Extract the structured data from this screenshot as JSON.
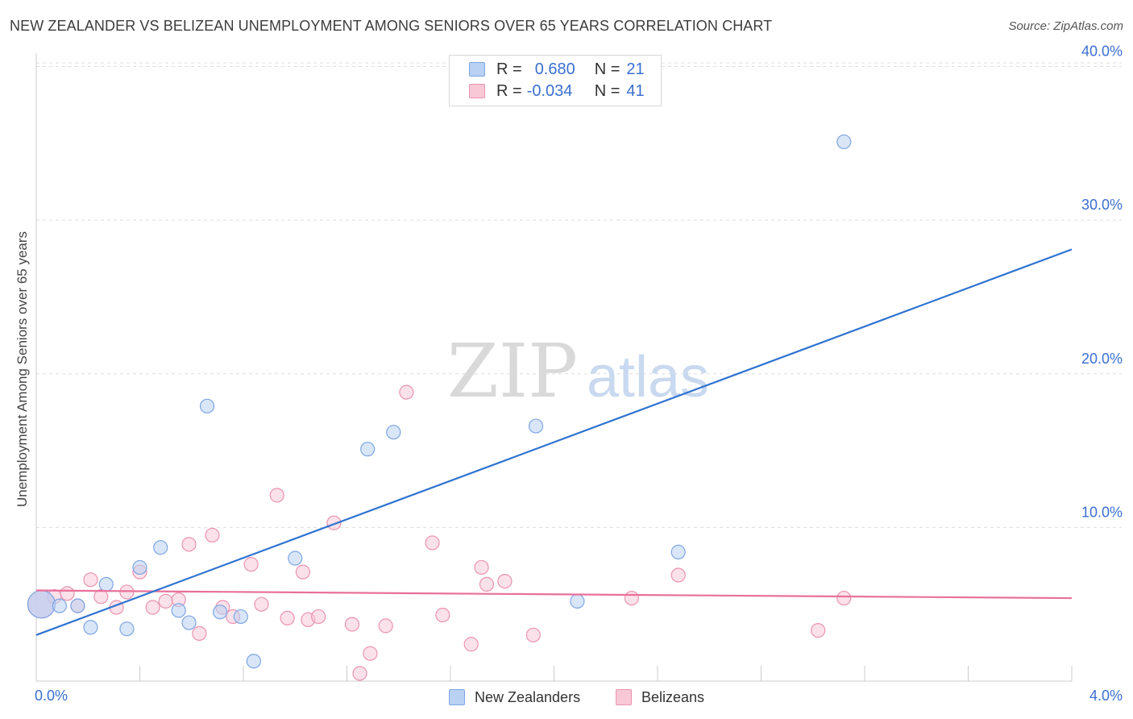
{
  "header": {
    "title": "NEW ZEALANDER VS BELIZEAN UNEMPLOYMENT AMONG SENIORS OVER 65 YEARS CORRELATION CHART",
    "source": "Source: ZipAtlas.com"
  },
  "watermark": {
    "zip": "ZIP",
    "atlas": "atlas"
  },
  "legend_top": {
    "rows": [
      {
        "r_label": "R =",
        "r_value": "0.680",
        "n_label": "N =",
        "n_value": "21"
      },
      {
        "r_label": "R =",
        "r_value": "-0.034",
        "n_label": "N =",
        "n_value": "41"
      }
    ]
  },
  "legend_bottom": {
    "series1": "New Zealanders",
    "series2": "Belizeans"
  },
  "colors": {
    "blue_fill": "#b9d1f3",
    "blue_stroke": "#7ea6e3",
    "blue_line": "#2f73d0",
    "pink_fill": "#f8c8d7",
    "pink_stroke": "#eb93b1",
    "pink_line": "#e8709b",
    "grid": "#dddddd",
    "tick_label": "#3a6fd0"
  },
  "chart_data": {
    "type": "scatter",
    "title": "NEW ZEALANDER VS BELIZEAN UNEMPLOYMENT AMONG SENIORS OVER 65 YEARS CORRELATION CHART",
    "xlabel": "",
    "ylabel": "Unemployment Among Seniors over 65 years",
    "xlim": [
      0,
      4.0
    ],
    "ylim": [
      0,
      40.5
    ],
    "x_tick_labels": [
      "0.0%",
      "4.0%"
    ],
    "y_ticks": [
      10,
      20,
      30,
      40
    ],
    "y_tick_labels": [
      "10.0%",
      "20.0%",
      "30.0%",
      "40.0%"
    ],
    "series": [
      {
        "name": "New Zealanders",
        "r": 0.68,
        "n": 21,
        "trend": {
          "x": [
            0.0,
            4.0
          ],
          "y": [
            3.0,
            28.1
          ]
        },
        "points": [
          {
            "x": 0.02,
            "y": 5.0,
            "big": true
          },
          {
            "x": 0.09,
            "y": 4.9
          },
          {
            "x": 0.16,
            "y": 4.9
          },
          {
            "x": 0.21,
            "y": 3.5
          },
          {
            "x": 0.27,
            "y": 6.3
          },
          {
            "x": 0.35,
            "y": 3.4
          },
          {
            "x": 0.4,
            "y": 7.4
          },
          {
            "x": 0.48,
            "y": 8.7
          },
          {
            "x": 0.55,
            "y": 4.6
          },
          {
            "x": 0.59,
            "y": 3.8
          },
          {
            "x": 0.66,
            "y": 17.9
          },
          {
            "x": 0.71,
            "y": 4.5
          },
          {
            "x": 0.79,
            "y": 4.2
          },
          {
            "x": 0.84,
            "y": 1.3
          },
          {
            "x": 1.0,
            "y": 8.0
          },
          {
            "x": 1.28,
            "y": 15.1
          },
          {
            "x": 1.38,
            "y": 16.2
          },
          {
            "x": 1.93,
            "y": 16.6
          },
          {
            "x": 2.09,
            "y": 5.2
          },
          {
            "x": 2.48,
            "y": 8.4
          },
          {
            "x": 3.12,
            "y": 35.1
          }
        ]
      },
      {
        "name": "Belizeans",
        "r": -0.034,
        "n": 41,
        "trend": {
          "x": [
            0.0,
            4.0
          ],
          "y": [
            5.9,
            5.4
          ]
        },
        "points": [
          {
            "x": 0.02,
            "y": 5.0,
            "big": true
          },
          {
            "x": 0.07,
            "y": 5.5
          },
          {
            "x": 0.12,
            "y": 5.7
          },
          {
            "x": 0.16,
            "y": 4.9
          },
          {
            "x": 0.21,
            "y": 6.6
          },
          {
            "x": 0.25,
            "y": 5.5
          },
          {
            "x": 0.31,
            "y": 4.8
          },
          {
            "x": 0.35,
            "y": 5.8
          },
          {
            "x": 0.4,
            "y": 7.1
          },
          {
            "x": 0.45,
            "y": 4.8
          },
          {
            "x": 0.5,
            "y": 5.2
          },
          {
            "x": 0.55,
            "y": 5.3
          },
          {
            "x": 0.59,
            "y": 8.9
          },
          {
            "x": 0.63,
            "y": 3.1
          },
          {
            "x": 0.68,
            "y": 9.5
          },
          {
            "x": 0.72,
            "y": 4.8
          },
          {
            "x": 0.76,
            "y": 4.2
          },
          {
            "x": 0.83,
            "y": 7.6
          },
          {
            "x": 0.87,
            "y": 5.0
          },
          {
            "x": 0.93,
            "y": 12.1
          },
          {
            "x": 0.97,
            "y": 4.1
          },
          {
            "x": 1.03,
            "y": 7.1
          },
          {
            "x": 1.05,
            "y": 4.0
          },
          {
            "x": 1.09,
            "y": 4.2
          },
          {
            "x": 1.15,
            "y": 10.3
          },
          {
            "x": 1.22,
            "y": 3.7
          },
          {
            "x": 1.25,
            "y": 0.5
          },
          {
            "x": 1.29,
            "y": 1.8
          },
          {
            "x": 1.35,
            "y": 3.6
          },
          {
            "x": 1.43,
            "y": 18.8
          },
          {
            "x": 1.53,
            "y": 9.0
          },
          {
            "x": 1.57,
            "y": 4.3
          },
          {
            "x": 1.68,
            "y": 2.4
          },
          {
            "x": 1.72,
            "y": 7.4
          },
          {
            "x": 1.74,
            "y": 6.3
          },
          {
            "x": 1.81,
            "y": 6.5
          },
          {
            "x": 1.92,
            "y": 3.0
          },
          {
            "x": 2.3,
            "y": 5.4
          },
          {
            "x": 2.48,
            "y": 6.9
          },
          {
            "x": 3.02,
            "y": 3.3
          },
          {
            "x": 3.12,
            "y": 5.4
          }
        ]
      }
    ]
  }
}
